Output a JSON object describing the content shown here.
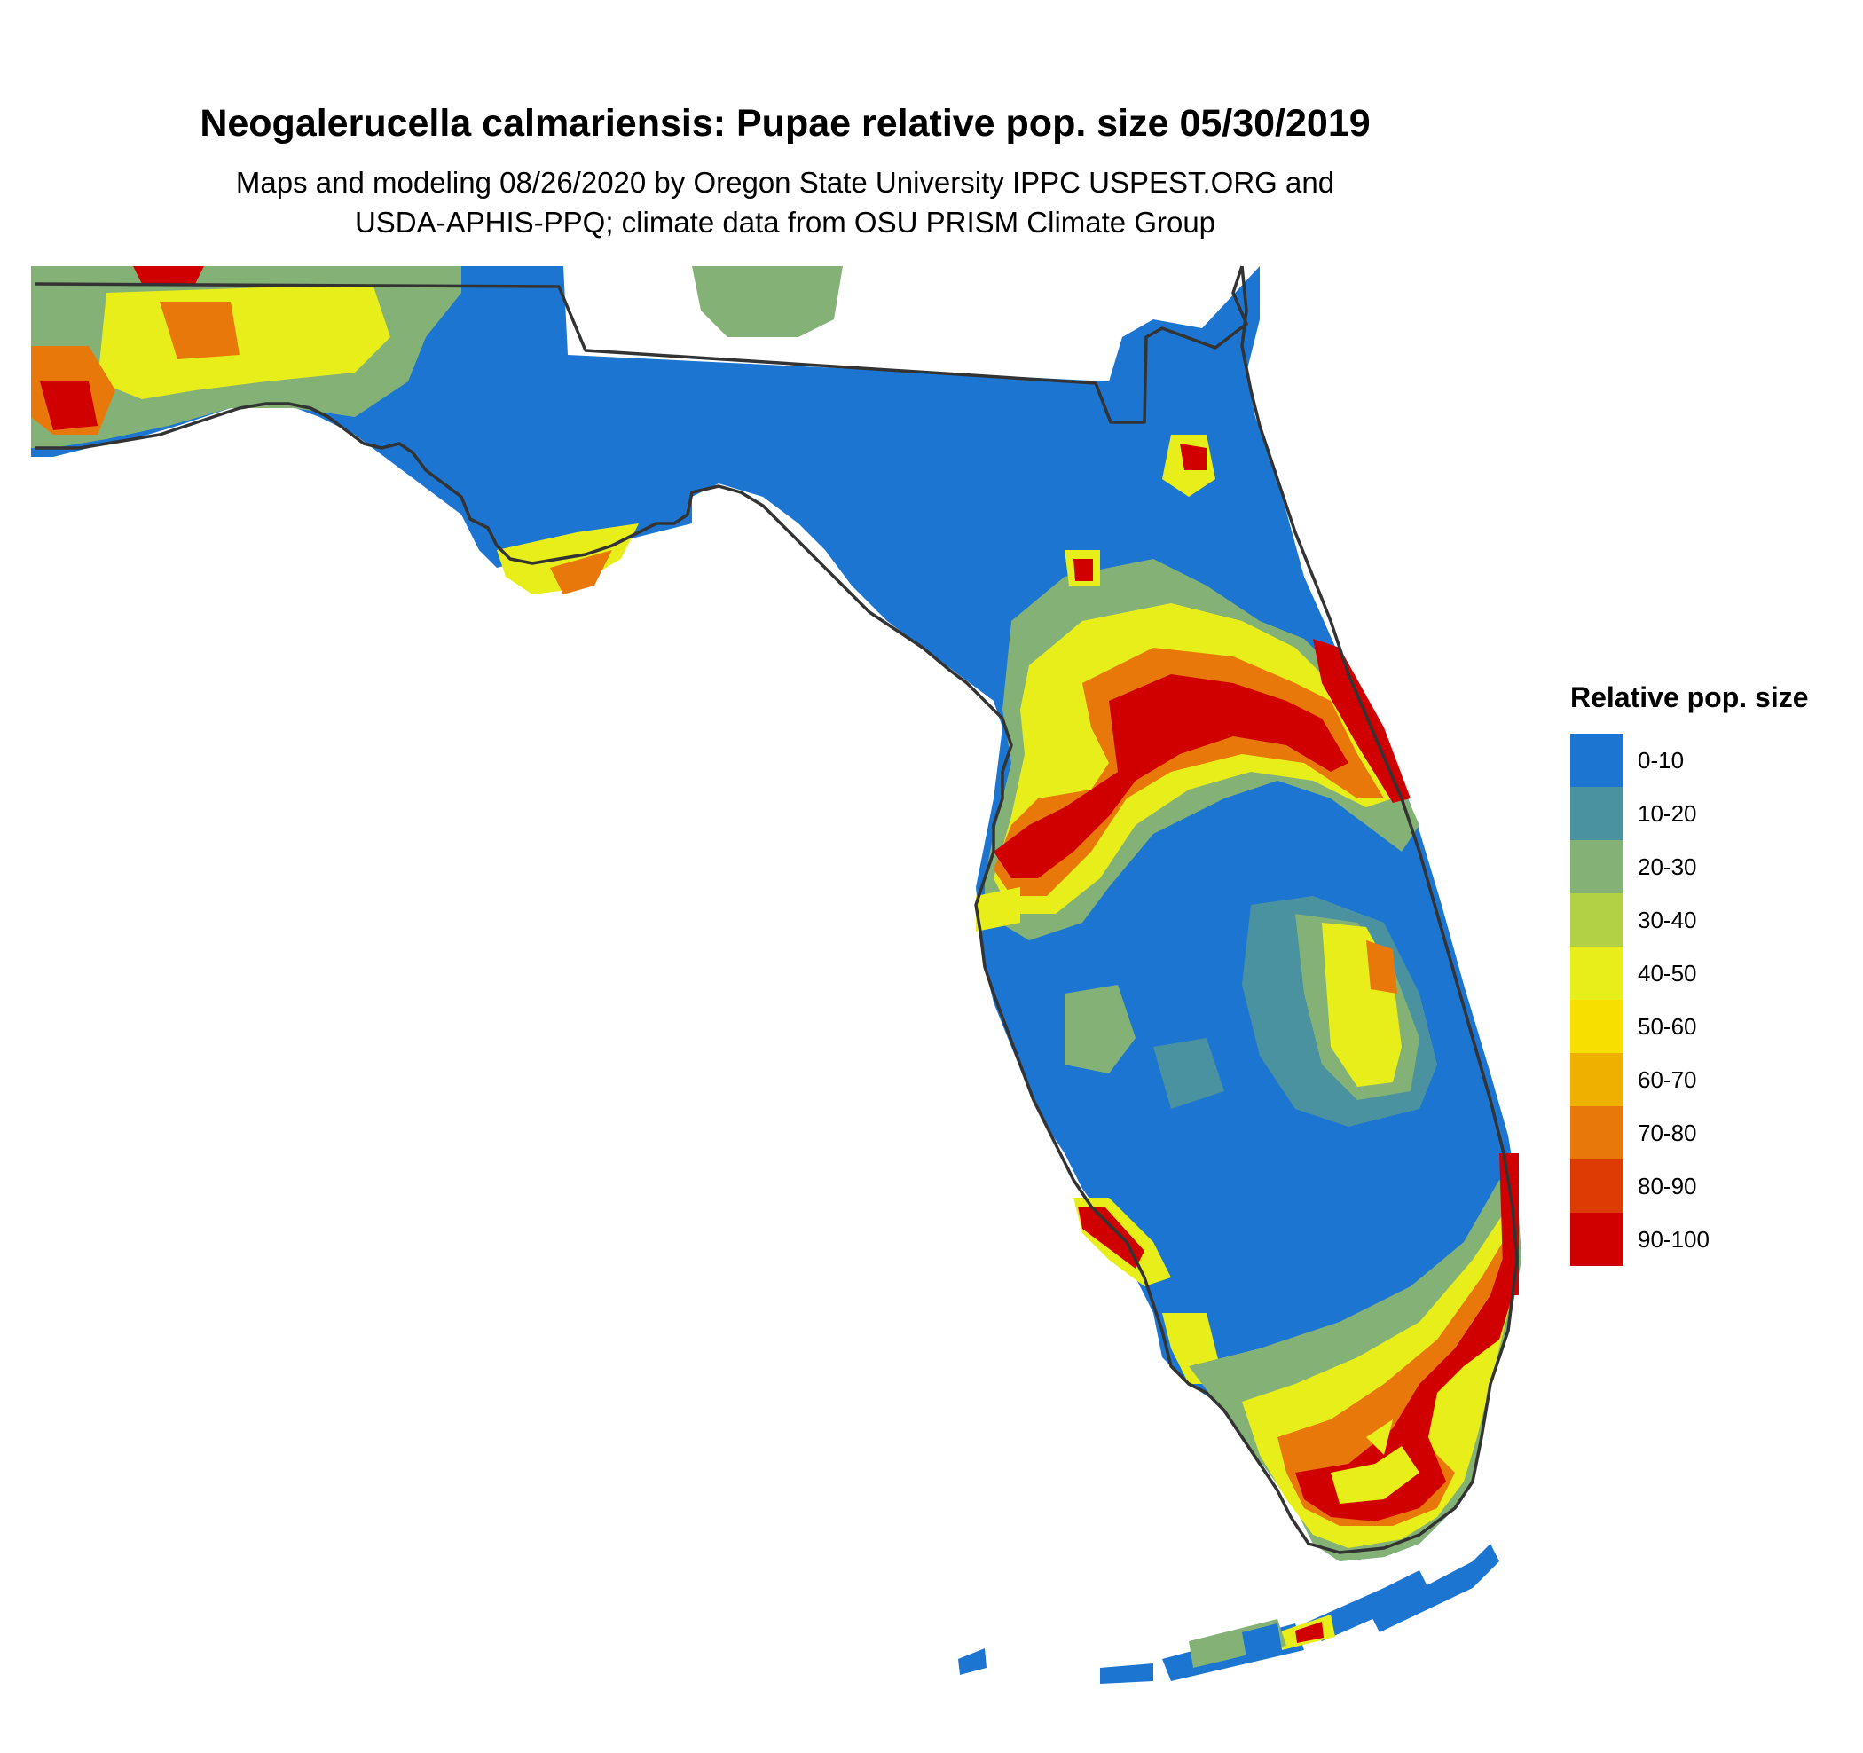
{
  "title": "Neogalerucella calmariensis: Pupae relative pop. size 05/30/2019",
  "subtitle_line1": "Maps and modeling 08/26/2020 by Oregon State University IPPC USPEST.ORG and",
  "subtitle_line2": "USDA-APHIS-PPQ; climate data from OSU PRISM Climate Group",
  "legend": {
    "title": "Relative pop. size",
    "classes": [
      {
        "label": "0-10",
        "color": "#1c75d0"
      },
      {
        "label": "10-20",
        "color": "#4a92a0"
      },
      {
        "label": "20-30",
        "color": "#84b276"
      },
      {
        "label": "30-40",
        "color": "#b2d144"
      },
      {
        "label": "40-50",
        "color": "#e8ee1a"
      },
      {
        "label": "50-60",
        "color": "#f7df00"
      },
      {
        "label": "60-70",
        "color": "#f0b000"
      },
      {
        "label": "70-80",
        "color": "#e8780a"
      },
      {
        "label": "80-90",
        "color": "#de3a04"
      },
      {
        "label": "90-100",
        "color": "#d10000"
      }
    ]
  },
  "map": {
    "region": "Florida",
    "outline_color": "#333333",
    "background": "#ffffff"
  }
}
